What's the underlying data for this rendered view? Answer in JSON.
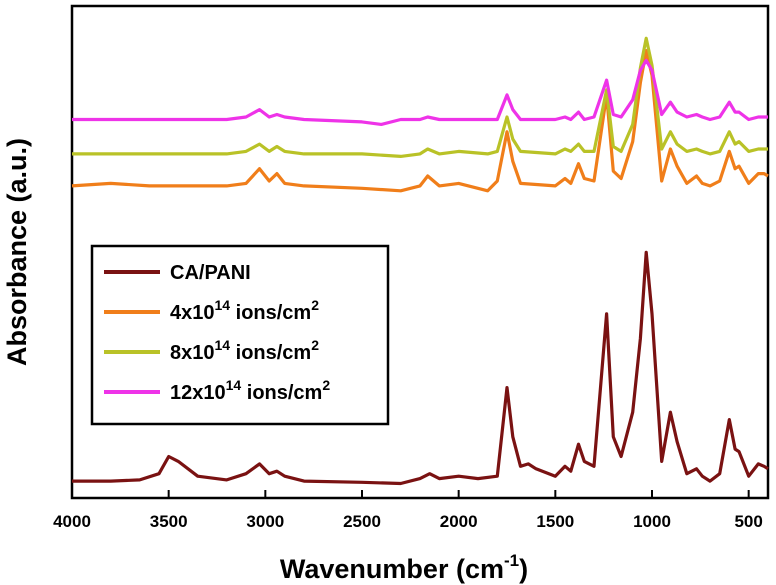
{
  "chart_data": {
    "type": "line",
    "xlabel_main": "Wavenumber (cm",
    "xlabel_sup": "-1",
    "xlabel_close": ")",
    "ylabel": "Absorbance (a.u.)",
    "xlim": [
      4000,
      400
    ],
    "x_ticks": [
      4000,
      3500,
      3000,
      2500,
      2000,
      1500,
      1000,
      500
    ],
    "x_tick_labels": [
      "4000",
      "3500",
      "3000",
      "2500",
      "2000",
      "1500",
      "1000",
      "500"
    ],
    "y_tick_labels_shown": false,
    "legend_position": "middle-left",
    "series": [
      {
        "name_main": "CA/PANI",
        "name_sup": "",
        "name_rest": "",
        "color": "#7a1212",
        "offset": 0.0,
        "points": [
          [
            4000,
            0.02
          ],
          [
            3800,
            0.02
          ],
          [
            3650,
            0.025
          ],
          [
            3550,
            0.05
          ],
          [
            3500,
            0.12
          ],
          [
            3450,
            0.1
          ],
          [
            3350,
            0.04
          ],
          [
            3200,
            0.025
          ],
          [
            3100,
            0.05
          ],
          [
            3030,
            0.09
          ],
          [
            2980,
            0.05
          ],
          [
            2940,
            0.06
          ],
          [
            2900,
            0.04
          ],
          [
            2800,
            0.02
          ],
          [
            2500,
            0.015
          ],
          [
            2300,
            0.01
          ],
          [
            2200,
            0.03
          ],
          [
            2150,
            0.05
          ],
          [
            2100,
            0.03
          ],
          [
            2000,
            0.04
          ],
          [
            1900,
            0.03
          ],
          [
            1800,
            0.04
          ],
          [
            1750,
            0.4
          ],
          [
            1720,
            0.2
          ],
          [
            1680,
            0.08
          ],
          [
            1640,
            0.09
          ],
          [
            1600,
            0.07
          ],
          [
            1500,
            0.04
          ],
          [
            1450,
            0.08
          ],
          [
            1420,
            0.06
          ],
          [
            1380,
            0.17
          ],
          [
            1350,
            0.1
          ],
          [
            1300,
            0.08
          ],
          [
            1235,
            0.7
          ],
          [
            1200,
            0.2
          ],
          [
            1160,
            0.12
          ],
          [
            1100,
            0.3
          ],
          [
            1060,
            0.6
          ],
          [
            1030,
            0.95
          ],
          [
            1000,
            0.7
          ],
          [
            950,
            0.1
          ],
          [
            905,
            0.3
          ],
          [
            870,
            0.18
          ],
          [
            820,
            0.05
          ],
          [
            770,
            0.07
          ],
          [
            740,
            0.04
          ],
          [
            700,
            0.02
          ],
          [
            650,
            0.05
          ],
          [
            600,
            0.27
          ],
          [
            570,
            0.15
          ],
          [
            550,
            0.14
          ],
          [
            500,
            0.04
          ],
          [
            450,
            0.09
          ],
          [
            420,
            0.08
          ],
          [
            400,
            0.07
          ]
        ]
      },
      {
        "name_main": "4x10",
        "name_sup": "14",
        "name_rest": " ions/cm",
        "name_sup2": "2",
        "color": "#f07e1a",
        "offset": 1.22,
        "points": [
          [
            4000,
            0.0
          ],
          [
            3800,
            0.01
          ],
          [
            3600,
            0.0
          ],
          [
            3400,
            0.0
          ],
          [
            3200,
            0.0
          ],
          [
            3100,
            0.01
          ],
          [
            3030,
            0.07
          ],
          [
            2980,
            0.02
          ],
          [
            2940,
            0.05
          ],
          [
            2900,
            0.01
          ],
          [
            2800,
            0.0
          ],
          [
            2500,
            -0.01
          ],
          [
            2300,
            -0.02
          ],
          [
            2200,
            0.0
          ],
          [
            2160,
            0.04
          ],
          [
            2100,
            0.0
          ],
          [
            2000,
            0.01
          ],
          [
            1850,
            -0.02
          ],
          [
            1800,
            0.02
          ],
          [
            1750,
            0.22
          ],
          [
            1720,
            0.1
          ],
          [
            1680,
            0.01
          ],
          [
            1500,
            0.0
          ],
          [
            1450,
            0.03
          ],
          [
            1420,
            0.01
          ],
          [
            1380,
            0.09
          ],
          [
            1350,
            0.03
          ],
          [
            1300,
            0.02
          ],
          [
            1235,
            0.37
          ],
          [
            1200,
            0.06
          ],
          [
            1160,
            0.03
          ],
          [
            1100,
            0.18
          ],
          [
            1060,
            0.42
          ],
          [
            1030,
            0.55
          ],
          [
            1000,
            0.45
          ],
          [
            950,
            0.02
          ],
          [
            905,
            0.15
          ],
          [
            870,
            0.08
          ],
          [
            820,
            0.01
          ],
          [
            770,
            0.04
          ],
          [
            740,
            0.01
          ],
          [
            700,
            0.0
          ],
          [
            650,
            0.02
          ],
          [
            600,
            0.14
          ],
          [
            570,
            0.07
          ],
          [
            550,
            0.08
          ],
          [
            500,
            0.01
          ],
          [
            450,
            0.05
          ],
          [
            420,
            0.05
          ],
          [
            400,
            0.04
          ]
        ]
      },
      {
        "name_main": "8x10",
        "name_sup": "14",
        "name_rest": " ions/cm",
        "name_sup2": "2",
        "color": "#b9c227",
        "offset": 1.35,
        "points": [
          [
            4000,
            0.0
          ],
          [
            3800,
            0.0
          ],
          [
            3600,
            0.0
          ],
          [
            3400,
            0.0
          ],
          [
            3200,
            0.0
          ],
          [
            3100,
            0.01
          ],
          [
            3030,
            0.04
          ],
          [
            2980,
            0.01
          ],
          [
            2940,
            0.03
          ],
          [
            2900,
            0.01
          ],
          [
            2800,
            0.0
          ],
          [
            2500,
            0.0
          ],
          [
            2300,
            -0.01
          ],
          [
            2200,
            0.0
          ],
          [
            2160,
            0.02
          ],
          [
            2100,
            0.0
          ],
          [
            2000,
            0.01
          ],
          [
            1850,
            0.0
          ],
          [
            1800,
            0.01
          ],
          [
            1750,
            0.15
          ],
          [
            1720,
            0.06
          ],
          [
            1680,
            0.01
          ],
          [
            1500,
            0.0
          ],
          [
            1450,
            0.02
          ],
          [
            1420,
            0.01
          ],
          [
            1380,
            0.04
          ],
          [
            1350,
            0.01
          ],
          [
            1300,
            0.01
          ],
          [
            1235,
            0.26
          ],
          [
            1200,
            0.03
          ],
          [
            1160,
            0.01
          ],
          [
            1100,
            0.12
          ],
          [
            1060,
            0.35
          ],
          [
            1030,
            0.47
          ],
          [
            1000,
            0.36
          ],
          [
            950,
            0.02
          ],
          [
            905,
            0.09
          ],
          [
            870,
            0.04
          ],
          [
            820,
            0.01
          ],
          [
            770,
            0.02
          ],
          [
            740,
            0.01
          ],
          [
            700,
            0.0
          ],
          [
            650,
            0.01
          ],
          [
            600,
            0.09
          ],
          [
            570,
            0.04
          ],
          [
            550,
            0.05
          ],
          [
            500,
            0.01
          ],
          [
            450,
            0.02
          ],
          [
            420,
            0.02
          ],
          [
            400,
            0.02
          ]
        ]
      },
      {
        "name_main": "12x10",
        "name_sup": "14",
        "name_rest": " ions/cm",
        "name_sup2": "2",
        "color": "#ee33e8",
        "offset": 1.49,
        "points": [
          [
            4000,
            0.0
          ],
          [
            3800,
            0.0
          ],
          [
            3600,
            0.0
          ],
          [
            3400,
            0.0
          ],
          [
            3200,
            0.0
          ],
          [
            3100,
            0.01
          ],
          [
            3030,
            0.04
          ],
          [
            2980,
            0.01
          ],
          [
            2940,
            0.02
          ],
          [
            2900,
            0.01
          ],
          [
            2800,
            0.0
          ],
          [
            2500,
            -0.01
          ],
          [
            2400,
            -0.02
          ],
          [
            2300,
            0.0
          ],
          [
            2200,
            0.0
          ],
          [
            2160,
            0.01
          ],
          [
            2100,
            0.0
          ],
          [
            2000,
            0.0
          ],
          [
            1850,
            0.0
          ],
          [
            1800,
            0.0
          ],
          [
            1750,
            0.1
          ],
          [
            1720,
            0.04
          ],
          [
            1680,
            0.0
          ],
          [
            1500,
            0.0
          ],
          [
            1450,
            0.01
          ],
          [
            1420,
            0.0
          ],
          [
            1380,
            0.03
          ],
          [
            1350,
            0.0
          ],
          [
            1300,
            0.01
          ],
          [
            1235,
            0.16
          ],
          [
            1200,
            0.02
          ],
          [
            1160,
            0.01
          ],
          [
            1100,
            0.08
          ],
          [
            1060,
            0.2
          ],
          [
            1030,
            0.24
          ],
          [
            1000,
            0.2
          ],
          [
            950,
            0.02
          ],
          [
            905,
            0.07
          ],
          [
            870,
            0.03
          ],
          [
            820,
            0.01
          ],
          [
            770,
            0.02
          ],
          [
            740,
            0.01
          ],
          [
            700,
            0.0
          ],
          [
            650,
            0.01
          ],
          [
            600,
            0.07
          ],
          [
            570,
            0.03
          ],
          [
            550,
            0.03
          ],
          [
            500,
            0.0
          ],
          [
            450,
            0.01
          ],
          [
            420,
            0.01
          ],
          [
            400,
            0.01
          ]
        ]
      }
    ]
  }
}
